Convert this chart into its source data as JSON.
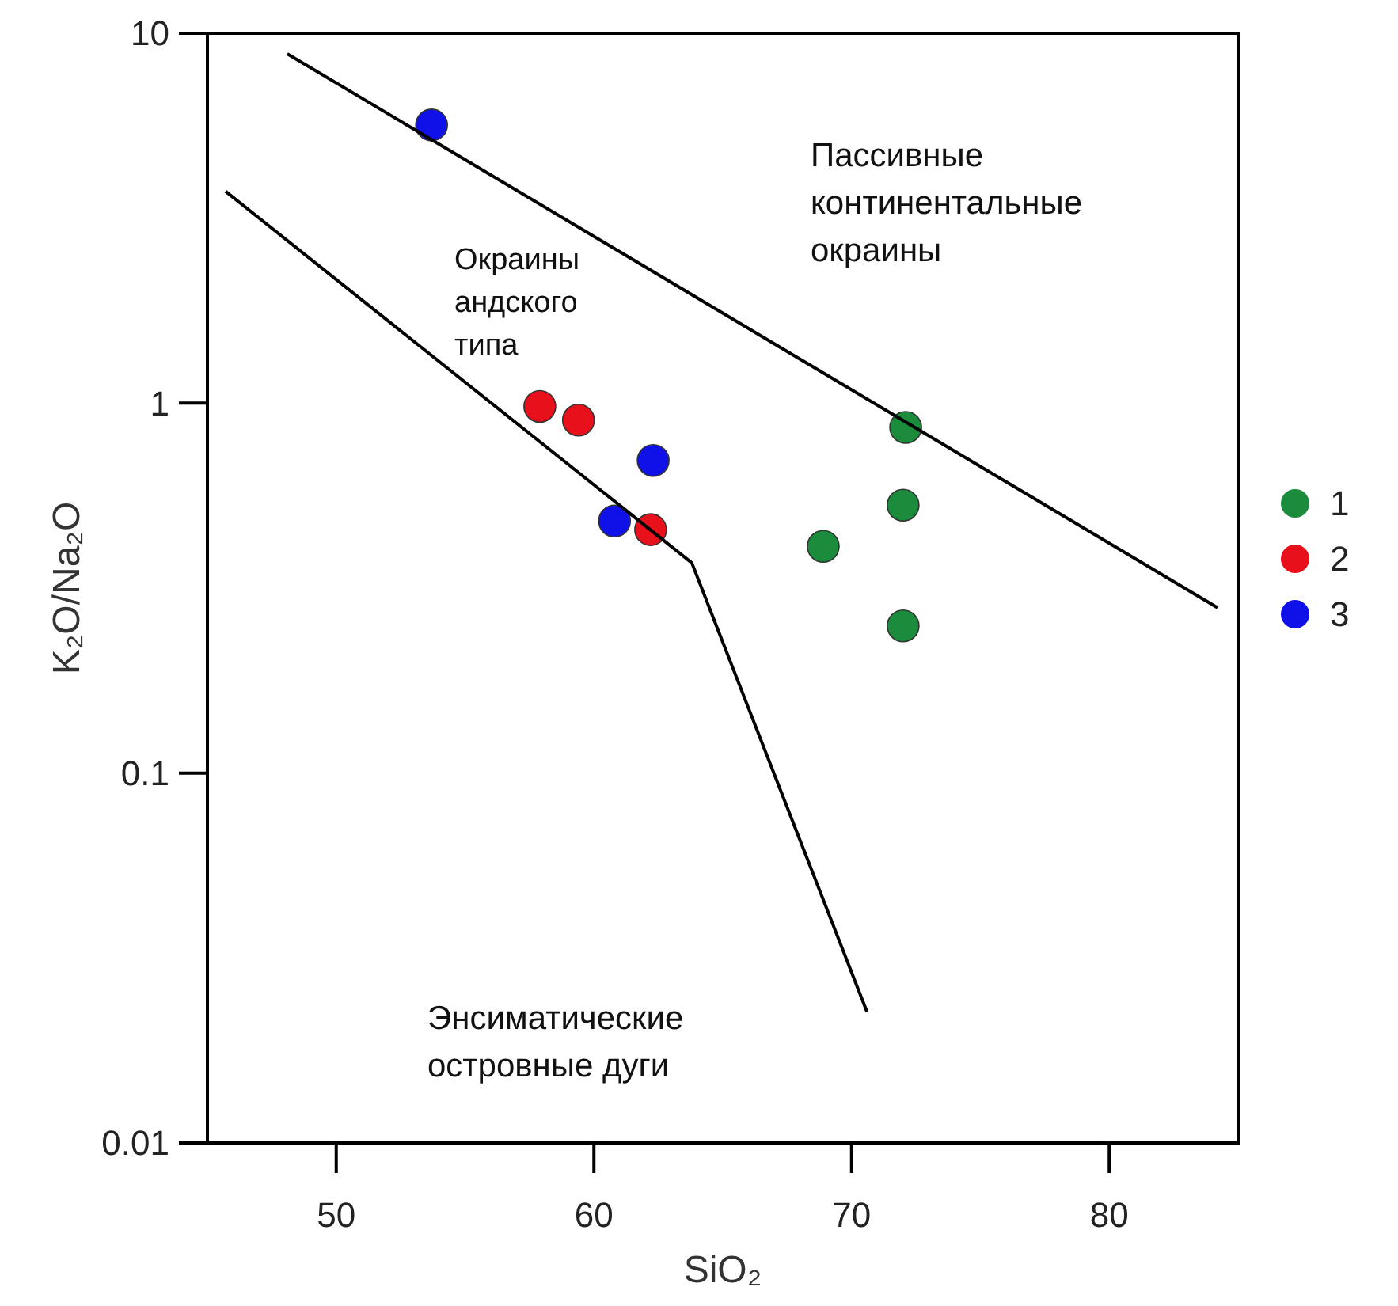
{
  "chart_data": {
    "type": "scatter",
    "xlabel": "SiO₂",
    "ylabel": "K₂O/Na₂O",
    "xlim": [
      45,
      85
    ],
    "xticks": [
      50,
      60,
      70,
      80
    ],
    "ylim": [
      0.01,
      10
    ],
    "yticks": [
      0.01,
      0.1,
      1,
      10
    ],
    "log": "y",
    "legend": "right",
    "marker": "circle",
    "series": [
      {
        "name": "1",
        "color": "#1a8c3c",
        "x": [
          72.1,
          68.9,
          72.0,
          72.0
        ],
        "values": [
          0.86,
          0.41,
          0.53,
          0.25
        ]
      },
      {
        "name": "2",
        "color": "#e8101a",
        "x": [
          57.9,
          59.4,
          62.2
        ],
        "values": [
          0.98,
          0.9,
          0.455
        ]
      },
      {
        "name": "3",
        "color": "#1010e8",
        "x": [
          53.7,
          60.8,
          62.3
        ],
        "values": [
          5.65,
          0.48,
          0.7
        ]
      },
      {
        "type": "line",
        "color": "#000000",
        "marker": "none",
        "x": [
          48.1,
          84.2
        ],
        "values": [
          8.8,
          0.28
        ]
      },
      {
        "type": "line",
        "color": "#000000",
        "marker": "none",
        "x": [
          45.7,
          63.8,
          70.6
        ],
        "values": [
          3.74,
          0.37,
          0.0226
        ]
      }
    ],
    "annotations": [
      "Пассивные\nконтинентальные\nокраины",
      "Окраины\nандского\nтипа",
      "Энсиматические\nостровные дуги"
    ]
  }
}
